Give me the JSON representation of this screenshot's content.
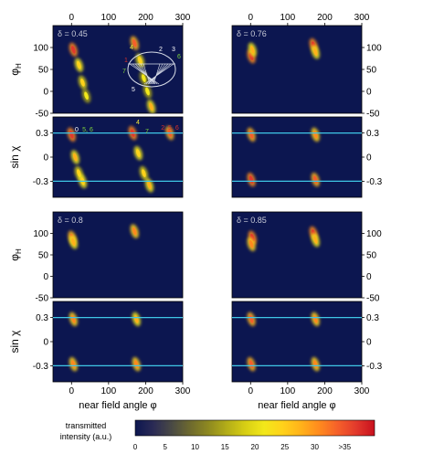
{
  "figure": {
    "colors": {
      "background": "#0c1650",
      "reference_line": "#3fc7e6",
      "inset_overlay": "#d8dde8",
      "label_text": "#c8cbd8",
      "marker_green": "#7cd23c",
      "marker_red": "#d8312a",
      "marker_yellow": "#f3e83a",
      "marker_white": "#ffffff"
    },
    "colorbar": {
      "label_line1": "transmitted",
      "label_line2": "intensity (a.u.)",
      "ticks": [
        "0",
        "5",
        "10",
        "15",
        "20",
        "25",
        "30",
        ">35"
      ],
      "range": [
        0,
        40
      ],
      "stops": [
        "#0c1650",
        "#2b2b55",
        "#4a4a44",
        "#6e6a2e",
        "#8f8a20",
        "#b4ae18",
        "#d8cf14",
        "#f2e81a",
        "#ffd21a",
        "#ffb21a",
        "#ff8a1e",
        "#f5602a",
        "#e23a2c",
        "#c8101e"
      ]
    }
  },
  "chart_data": [
    {
      "type": "heatmap",
      "panel": "top-left",
      "title": "δ = 0.45",
      "xlabel": "",
      "ylabel": "φ_H",
      "xlim": [
        -50,
        300
      ],
      "ylim": [
        -50,
        150
      ],
      "xticks": [
        "0",
        "100",
        "200",
        "300"
      ],
      "yticks": [
        "-50",
        "0",
        "50",
        "100"
      ],
      "annotations": [
        "1",
        "2",
        "3",
        "4",
        "5",
        "6",
        "7"
      ],
      "hotspots": [
        {
          "x": 5,
          "y": 95,
          "intensity": 30
        },
        {
          "x": 20,
          "y": 60,
          "intensity": 20
        },
        {
          "x": 30,
          "y": 20,
          "intensity": 18
        },
        {
          "x": 40,
          "y": -10,
          "intensity": 15
        },
        {
          "x": 170,
          "y": 110,
          "intensity": 28
        },
        {
          "x": 185,
          "y": 70,
          "intensity": 20
        },
        {
          "x": 195,
          "y": 30,
          "intensity": 16
        },
        {
          "x": 205,
          "y": 0,
          "intensity": 14
        },
        {
          "x": 215,
          "y": -35,
          "intensity": 22
        }
      ]
    },
    {
      "type": "heatmap",
      "panel": "top-left-lower",
      "xlabel": "",
      "ylabel": "sin χ",
      "xlim": [
        -50,
        300
      ],
      "ylim": [
        -0.5,
        0.5
      ],
      "yticks": [
        "0.3",
        "0",
        "-0.3"
      ],
      "reference_lines": [
        0.3,
        -0.3
      ],
      "annotations": [
        "4",
        "7",
        "2, 5, 6",
        "0",
        "5, 6"
      ],
      "hotspots": [
        {
          "x": 0,
          "y": 0.28,
          "intensity": 32
        },
        {
          "x": 10,
          "y": 0.0,
          "intensity": 22
        },
        {
          "x": 20,
          "y": -0.2,
          "intensity": 18
        },
        {
          "x": 30,
          "y": -0.3,
          "intensity": 20
        },
        {
          "x": 165,
          "y": 0.3,
          "intensity": 30
        },
        {
          "x": 180,
          "y": 0.05,
          "intensity": 20
        },
        {
          "x": 195,
          "y": -0.2,
          "intensity": 18
        },
        {
          "x": 210,
          "y": -0.35,
          "intensity": 22
        },
        {
          "x": 265,
          "y": 0.3,
          "intensity": 28
        }
      ]
    },
    {
      "type": "heatmap",
      "panel": "top-right",
      "title": "δ = 0.76",
      "xlabel": "",
      "ylabel": "φ_H",
      "xlim": [
        -50,
        300
      ],
      "ylim": [
        -50,
        150
      ],
      "xticks": [
        "0",
        "100",
        "200",
        "300"
      ],
      "yticks": [
        "100",
        "50",
        "0",
        "-50"
      ],
      "hotspots": [
        {
          "x": 2,
          "y": 80,
          "intensity": 30
        },
        {
          "x": 5,
          "y": 95,
          "intensity": 22
        },
        {
          "x": 170,
          "y": 105,
          "intensity": 30
        },
        {
          "x": 175,
          "y": 90,
          "intensity": 22
        }
      ]
    },
    {
      "type": "heatmap",
      "panel": "top-right-lower",
      "xlabel": "",
      "ylabel": "sin χ",
      "xlim": [
        -50,
        300
      ],
      "ylim": [
        -0.5,
        0.5
      ],
      "yticks": [
        "0.3",
        "0",
        "-0.3"
      ],
      "reference_lines": [
        0.3,
        -0.3
      ],
      "hotspots": [
        {
          "x": 2,
          "y": 0.28,
          "intensity": 28
        },
        {
          "x": 175,
          "y": 0.28,
          "intensity": 26
        },
        {
          "x": 2,
          "y": -0.28,
          "intensity": 30
        },
        {
          "x": 175,
          "y": -0.28,
          "intensity": 28
        }
      ]
    },
    {
      "type": "heatmap",
      "panel": "bottom-left",
      "title": "δ = 0.8",
      "xlabel": "",
      "ylabel": "φ_H",
      "xlim": [
        -50,
        300
      ],
      "ylim": [
        -50,
        150
      ],
      "yticks": [
        "100",
        "50",
        "0",
        "-50"
      ],
      "hotspots": [
        {
          "x": 2,
          "y": 90,
          "intensity": 28
        },
        {
          "x": 5,
          "y": 80,
          "intensity": 22
        },
        {
          "x": 170,
          "y": 105,
          "intensity": 26
        }
      ]
    },
    {
      "type": "heatmap",
      "panel": "bottom-left-lower",
      "xlabel": "near field angle φ",
      "ylabel": "sin χ",
      "xlim": [
        -50,
        300
      ],
      "ylim": [
        -0.5,
        0.5
      ],
      "xticks": [
        "0",
        "100",
        "200",
        "300"
      ],
      "yticks": [
        "0.3",
        "0",
        "-0.3"
      ],
      "reference_lines": [
        0.3,
        -0.3
      ],
      "hotspots": [
        {
          "x": 5,
          "y": 0.28,
          "intensity": 24
        },
        {
          "x": 175,
          "y": 0.28,
          "intensity": 22
        },
        {
          "x": 5,
          "y": -0.28,
          "intensity": 26
        },
        {
          "x": 175,
          "y": -0.28,
          "intensity": 24
        }
      ]
    },
    {
      "type": "heatmap",
      "panel": "bottom-right",
      "title": "δ = 0.85",
      "xlabel": "",
      "ylabel": "φ_H",
      "xlim": [
        -50,
        300
      ],
      "ylim": [
        -50,
        150
      ],
      "yticks": [
        "100",
        "50",
        "0",
        "-50"
      ],
      "hotspots": [
        {
          "x": 5,
          "y": 90,
          "intensity": 30
        },
        {
          "x": 2,
          "y": 75,
          "intensity": 24
        },
        {
          "x": 170,
          "y": 100,
          "intensity": 30
        },
        {
          "x": 175,
          "y": 85,
          "intensity": 22
        }
      ]
    },
    {
      "type": "heatmap",
      "panel": "bottom-right-lower",
      "xlabel": "near field angle φ",
      "ylabel": "sin χ",
      "xlim": [
        -50,
        300
      ],
      "ylim": [
        -0.5,
        0.5
      ],
      "xticks": [
        "0",
        "100",
        "200",
        "300"
      ],
      "yticks": [
        "0.3",
        "0",
        "-0.3"
      ],
      "reference_lines": [
        0.3,
        -0.3
      ],
      "hotspots": [
        {
          "x": 2,
          "y": 0.28,
          "intensity": 28
        },
        {
          "x": 175,
          "y": 0.28,
          "intensity": 26
        },
        {
          "x": 2,
          "y": -0.28,
          "intensity": 28
        },
        {
          "x": 175,
          "y": -0.28,
          "intensity": 26
        }
      ]
    }
  ]
}
